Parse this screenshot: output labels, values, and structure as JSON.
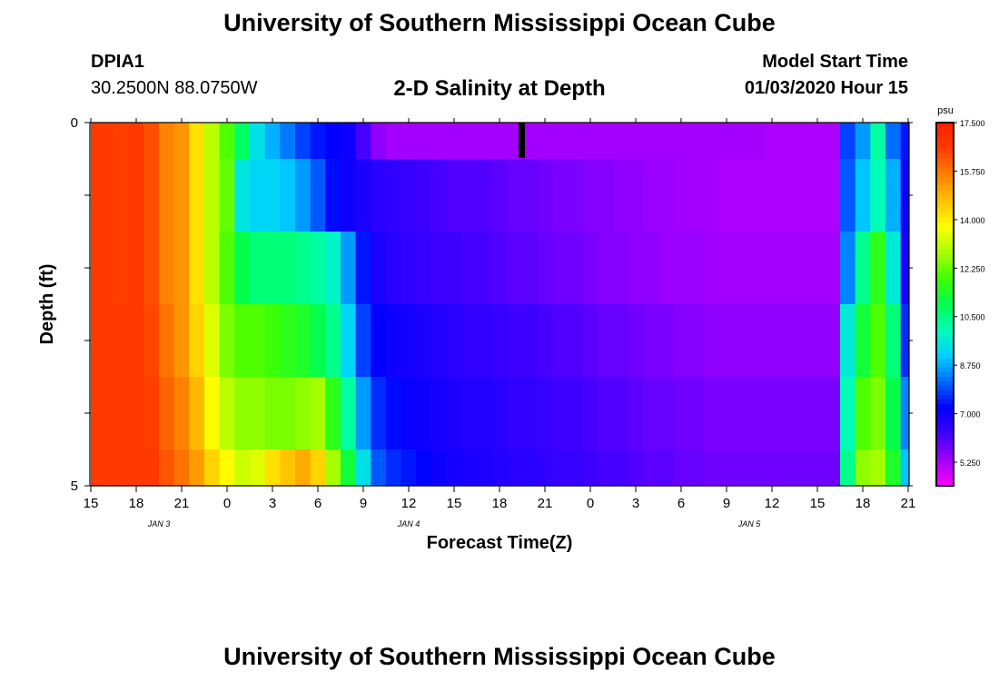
{
  "header": {
    "title": "University of Southern Mississippi Ocean Cube",
    "station": "DPIA1",
    "coordinates": "30.2500N 88.0750W",
    "subtitle": "2-D Salinity at Depth",
    "model_start_label": "Model Start Time",
    "model_start_value": "01/03/2020 Hour 15",
    "footer_title": "University of Southern Mississippi Ocean Cube"
  },
  "chart_data": {
    "type": "heatmap",
    "title": "2-D Salinity at Depth",
    "xlabel": "Forecast Time(Z)",
    "ylabel": "Depth (ft)",
    "x_tick_labels": [
      "15",
      "18",
      "21",
      "0",
      "3",
      "6",
      "9",
      "12",
      "15",
      "18",
      "21",
      "0",
      "3",
      "6",
      "9",
      "12",
      "15",
      "18",
      "21"
    ],
    "date_labels": [
      {
        "label": "JAN 3",
        "hour": 4.5
      },
      {
        "label": "JAN 4",
        "hour": 21
      },
      {
        "label": "JAN 5",
        "hour": 43.5
      }
    ],
    "y_tick_labels": [
      "0",
      "5"
    ],
    "ylim": [
      0,
      5
    ],
    "x_hours": [
      0,
      1,
      2,
      3,
      4,
      5,
      6,
      7,
      8,
      9,
      10,
      11,
      12,
      13,
      14,
      15,
      16,
      17,
      18,
      19,
      20,
      21,
      22,
      23,
      24,
      25,
      26,
      27,
      28,
      29,
      30,
      31,
      32,
      33,
      34,
      35,
      36,
      37,
      38,
      39,
      40,
      41,
      42,
      43,
      44,
      45,
      46,
      47,
      48,
      49,
      50,
      51,
      52,
      53,
      54
    ],
    "depth_rows": [
      "0-0.5",
      "0.5-1.5",
      "1.5-2.5",
      "2.5-3.5",
      "3.5-4.5",
      "4.5-5"
    ],
    "values": [
      [
        16.6,
        16.6,
        16.5,
        16.6,
        16.3,
        15.6,
        15.3,
        14.2,
        13.0,
        12.0,
        10.8,
        9.4,
        8.8,
        8.3,
        7.8,
        7.4,
        7.2,
        7.0,
        6.2,
        5.5,
        5.3,
        5.3,
        5.3,
        5.3,
        5.3,
        5.3,
        5.3,
        5.3,
        5.3,
        5.3,
        5.3,
        5.3,
        5.3,
        5.3,
        5.3,
        5.3,
        5.3,
        5.3,
        5.3,
        5.3,
        5.3,
        5.3,
        5.3,
        5.3,
        5.3,
        5.2,
        5.2,
        5.2,
        5.2,
        5.2,
        7.8,
        8.6,
        10.2,
        8.2,
        7.4
      ],
      [
        16.6,
        16.6,
        16.5,
        16.6,
        16.3,
        15.6,
        15.3,
        14.2,
        13.0,
        12.2,
        9.5,
        9.2,
        9.2,
        9.0,
        8.6,
        8.0,
        7.3,
        7.0,
        6.8,
        6.6,
        6.5,
        6.4,
        6.3,
        6.2,
        6.1,
        6.1,
        6.1,
        6.0,
        5.9,
        5.9,
        5.8,
        5.7,
        5.7,
        5.6,
        5.6,
        5.5,
        5.5,
        5.4,
        5.4,
        5.3,
        5.3,
        5.3,
        5.2,
        5.2,
        5.2,
        5.2,
        5.2,
        5.2,
        5.2,
        5.2,
        8.0,
        9.0,
        10.0,
        8.8,
        7.0
      ],
      [
        16.6,
        16.6,
        16.5,
        16.6,
        16.3,
        15.6,
        15.3,
        14.2,
        13.0,
        12.0,
        11.0,
        10.6,
        10.6,
        10.6,
        10.4,
        10.2,
        9.8,
        8.6,
        7.4,
        6.8,
        6.6,
        6.5,
        6.4,
        6.3,
        6.3,
        6.2,
        6.2,
        6.1,
        6.0,
        6.0,
        5.9,
        5.8,
        5.8,
        5.7,
        5.6,
        5.6,
        5.5,
        5.5,
        5.4,
        5.4,
        5.4,
        5.3,
        5.3,
        5.3,
        5.3,
        5.3,
        5.3,
        5.3,
        5.3,
        5.3,
        8.4,
        10.4,
        11.6,
        9.6,
        6.8
      ],
      [
        16.6,
        16.6,
        16.6,
        16.6,
        16.4,
        15.8,
        15.3,
        14.4,
        13.4,
        12.4,
        12.0,
        12.0,
        11.8,
        11.6,
        11.4,
        11.0,
        10.4,
        9.2,
        7.8,
        7.2,
        7.0,
        6.9,
        6.8,
        6.7,
        6.6,
        6.5,
        6.5,
        6.4,
        6.3,
        6.3,
        6.2,
        6.1,
        6.1,
        6.0,
        5.9,
        5.9,
        5.8,
        5.7,
        5.7,
        5.6,
        5.6,
        5.5,
        5.5,
        5.5,
        5.5,
        5.5,
        5.5,
        5.5,
        5.5,
        5.5,
        9.6,
        11.2,
        12.0,
        10.6,
        7.6
      ],
      [
        16.6,
        16.6,
        16.6,
        16.6,
        16.5,
        16.0,
        15.6,
        14.8,
        13.8,
        13.0,
        12.6,
        12.6,
        12.4,
        12.4,
        12.6,
        12.8,
        11.6,
        10.2,
        8.6,
        7.6,
        7.3,
        7.1,
        7.0,
        6.9,
        6.8,
        6.7,
        6.7,
        6.6,
        6.5,
        6.5,
        6.4,
        6.3,
        6.3,
        6.2,
        6.1,
        6.1,
        6.0,
        5.9,
        5.9,
        5.8,
        5.8,
        5.7,
        5.7,
        5.7,
        5.7,
        5.7,
        5.7,
        5.7,
        5.7,
        5.7,
        10.0,
        12.0,
        12.4,
        11.0,
        8.4
      ],
      [
        16.6,
        16.6,
        16.6,
        16.6,
        16.6,
        16.2,
        15.8,
        15.2,
        14.4,
        13.8,
        13.2,
        13.4,
        14.2,
        14.6,
        15.0,
        14.4,
        12.8,
        11.2,
        9.4,
        8.0,
        7.6,
        7.4,
        7.2,
        7.0,
        6.9,
        6.8,
        6.8,
        6.7,
        6.6,
        6.6,
        6.5,
        6.4,
        6.4,
        6.3,
        6.2,
        6.2,
        6.1,
        6.0,
        6.0,
        5.9,
        5.9,
        5.8,
        5.8,
        5.8,
        5.8,
        5.8,
        5.8,
        5.8,
        5.8,
        5.8,
        10.4,
        12.6,
        12.8,
        11.4,
        9.0
      ]
    ],
    "colorbar": {
      "unit": "psu",
      "min": 4.4,
      "max": 17.5,
      "tick_labels": [
        "17.500",
        "15.750",
        "14.000",
        "12.250",
        "10.500",
        "8.750",
        "7.000",
        "5.250"
      ],
      "colors": [
        "#ff00ff",
        "#a000ff",
        "#3f00ff",
        "#0000ff",
        "#0068ff",
        "#00d0ff",
        "#00ffb8",
        "#00ff50",
        "#40ff00",
        "#a8ff00",
        "#ffff00",
        "#ffc000",
        "#ff8000",
        "#ff3a00",
        "#ff2000"
      ]
    },
    "grid": false,
    "legend": "colorbar-right"
  }
}
